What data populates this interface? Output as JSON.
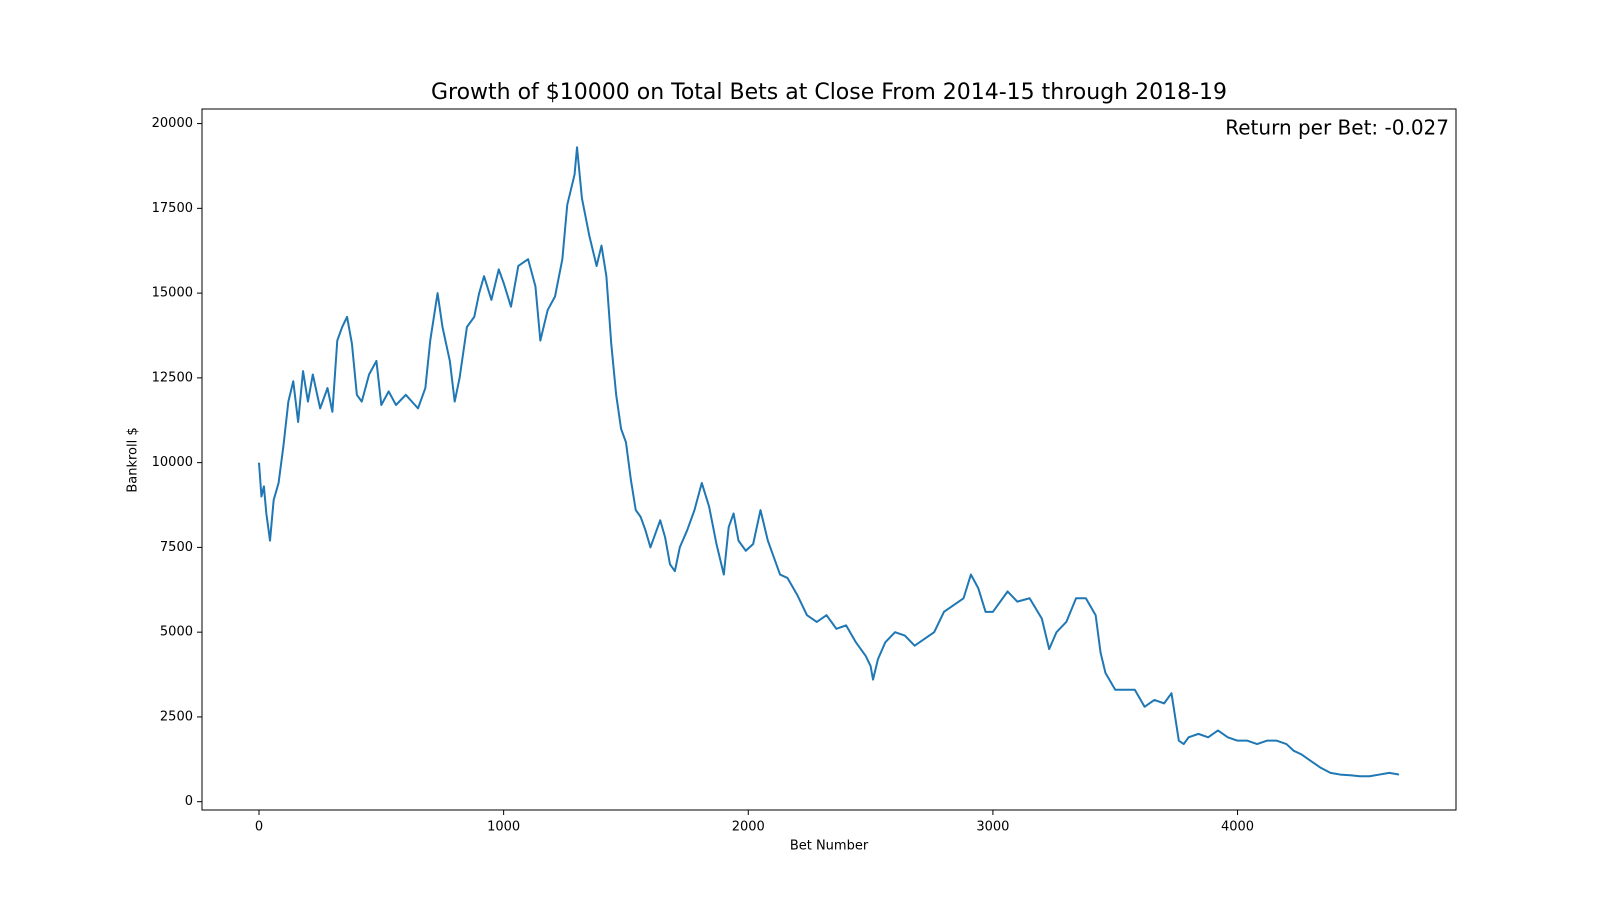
{
  "chart_data": {
    "type": "line",
    "title": "Growth of $10000 on Total Bets at Close From 2014-15 through 2018-19",
    "annotation": "Return per Bet: -0.027",
    "xlabel": "Bet Number",
    "ylabel": "Bankroll $",
    "xlim": [
      -233,
      4893
    ],
    "ylim": [
      -245,
      20430
    ],
    "xticks": [
      0,
      1000,
      2000,
      3000,
      4000
    ],
    "yticks": [
      0,
      2500,
      5000,
      7500,
      10000,
      12500,
      15000,
      17500,
      20000
    ],
    "x": [
      0,
      10,
      20,
      30,
      45,
      60,
      80,
      100,
      120,
      140,
      160,
      180,
      200,
      220,
      250,
      280,
      300,
      320,
      340,
      360,
      380,
      400,
      420,
      450,
      480,
      500,
      530,
      560,
      600,
      650,
      680,
      700,
      730,
      750,
      780,
      800,
      820,
      850,
      880,
      900,
      920,
      950,
      980,
      1000,
      1030,
      1060,
      1100,
      1130,
      1150,
      1180,
      1210,
      1240,
      1260,
      1290,
      1300,
      1320,
      1350,
      1380,
      1400,
      1420,
      1440,
      1460,
      1480,
      1500,
      1520,
      1540,
      1560,
      1580,
      1600,
      1620,
      1640,
      1660,
      1680,
      1700,
      1720,
      1750,
      1780,
      1810,
      1840,
      1870,
      1900,
      1920,
      1940,
      1960,
      1990,
      2020,
      2050,
      2080,
      2100,
      2130,
      2160,
      2200,
      2240,
      2280,
      2320,
      2360,
      2400,
      2440,
      2480,
      2500,
      2510,
      2530,
      2560,
      2600,
      2640,
      2680,
      2720,
      2760,
      2800,
      2840,
      2880,
      2910,
      2940,
      2970,
      3000,
      3030,
      3060,
      3100,
      3150,
      3200,
      3230,
      3260,
      3300,
      3340,
      3380,
      3420,
      3440,
      3460,
      3500,
      3540,
      3580,
      3620,
      3660,
      3700,
      3730,
      3760,
      3780,
      3800,
      3840,
      3880,
      3920,
      3960,
      4000,
      4040,
      4080,
      4120,
      4160,
      4200,
      4230,
      4260,
      4300,
      4340,
      4380,
      4420,
      4460,
      4500,
      4540,
      4580,
      4620,
      4660
    ],
    "series": [
      {
        "name": "Bankroll",
        "color": "#1f77b4",
        "values": [
          10000,
          9000,
          9300,
          8500,
          7700,
          8900,
          9400,
          10500,
          11800,
          12400,
          11200,
          12700,
          11800,
          12600,
          11600,
          12200,
          11500,
          13600,
          14000,
          14300,
          13500,
          12000,
          11800,
          12600,
          13000,
          11700,
          12100,
          11700,
          12000,
          11600,
          12200,
          13600,
          15000,
          14000,
          13000,
          11800,
          12500,
          14000,
          14300,
          15000,
          15500,
          14800,
          15700,
          15300,
          14600,
          15800,
          16000,
          15200,
          13600,
          14500,
          14900,
          16000,
          17600,
          18500,
          19300,
          17800,
          16700,
          15800,
          16400,
          15500,
          13500,
          12000,
          11000,
          10600,
          9500,
          8600,
          8400,
          8000,
          7500,
          7900,
          8300,
          7800,
          7000,
          6800,
          7500,
          8000,
          8600,
          9400,
          8700,
          7600,
          6700,
          8100,
          8500,
          7700,
          7400,
          7600,
          8600,
          7700,
          7300,
          6700,
          6600,
          6100,
          5500,
          5300,
          5500,
          5100,
          5200,
          4700,
          4300,
          4000,
          3600,
          4200,
          4700,
          5000,
          4900,
          4600,
          4800,
          5000,
          5600,
          5800,
          6000,
          6700,
          6300,
          5600,
          5600,
          5900,
          6200,
          5900,
          6000,
          5400,
          4500,
          5000,
          5300,
          6000,
          6000,
          5500,
          4400,
          3800,
          3300,
          3300,
          3300,
          2800,
          3000,
          2900,
          3200,
          1800,
          1700,
          1900,
          2000,
          1900,
          2100,
          1900,
          1800,
          1800,
          1700,
          1800,
          1800,
          1700,
          1500,
          1400,
          1200,
          1000,
          850,
          800,
          780,
          750,
          750,
          800,
          850,
          800
        ]
      }
    ]
  }
}
